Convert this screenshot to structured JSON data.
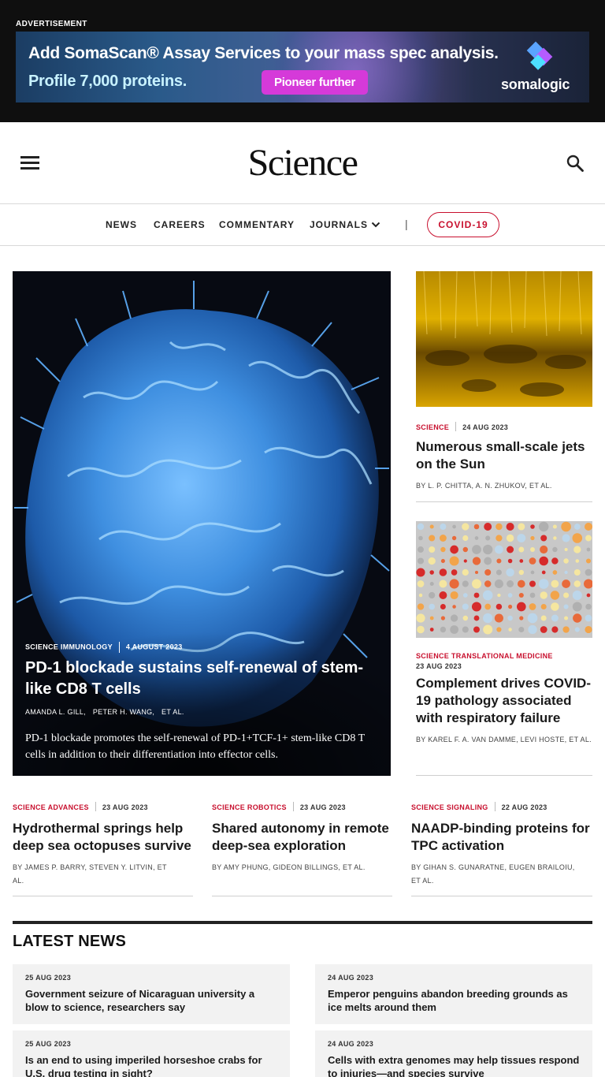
{
  "ad": {
    "label": "ADVERTISEMENT",
    "headline": "Add SomaScan® Assay Services to your mass spec analysis.",
    "subline": "Profile 7,000 proteins.",
    "cta": "Pioneer further",
    "brand": "somalogic"
  },
  "header": {
    "logo": "Science",
    "icons": {
      "menu": "hamburger-menu-icon",
      "search": "search-icon"
    }
  },
  "nav": {
    "items": [
      "NEWS",
      "CAREERS",
      "COMMENTARY",
      "JOURNALS"
    ],
    "separator": "|",
    "covid_label": "COVID-19"
  },
  "hero": {
    "kicker": "SCIENCE IMMUNOLOGY",
    "date": "4 AUGUST 2023",
    "title": "PD-1 blockade sustains self-renewal of stem-like CD8 T cells",
    "authors": [
      "AMANDA L. GILL,",
      "PETER H. WANG,",
      "ET AL."
    ],
    "description": "PD-1 blockade promotes the self-renewal of PD-1+TCF-1+ stem-like CD8 T cells in addition to their differentiation into effector cells."
  },
  "side_cards": [
    {
      "kicker": "SCIENCE",
      "date": "24 AUG 2023",
      "title": "Numerous small-scale jets on the Sun",
      "authors": "BY L. P. CHITTA, A. N. ZHUKOV, ET AL."
    },
    {
      "kicker": "SCIENCE TRANSLATIONAL MEDICINE",
      "date": "23 AUG 2023",
      "title": "Complement drives COVID-19 pathology associated with respiratory failure",
      "authors": "BY KAREL F. A. VAN DAMME, LEVI HOSTE, ET AL."
    }
  ],
  "row_cards": [
    {
      "kicker": "SCIENCE ADVANCES",
      "date": "23 AUG 2023",
      "title": "Hydrothermal springs help deep sea octopuses survive",
      "authors": "BY JAMES P. BARRY, STEVEN Y. LITVIN, ET AL."
    },
    {
      "kicker": "SCIENCE ROBOTICS",
      "date": "23 AUG 2023",
      "title": "Shared autonomy in remote deep-sea exploration",
      "authors": "BY AMY PHUNG, GIDEON BILLINGS, ET AL."
    },
    {
      "kicker": "SCIENCE SIGNALING",
      "date": "22 AUG 2023",
      "title": "NAADP-binding proteins for TPC activation",
      "authors": "BY GIHAN S. GUNARATNE, EUGEN BRAILOIU, ET AL."
    }
  ],
  "latest_news": {
    "heading": "LATEST NEWS",
    "items": [
      {
        "date": "25 AUG 2023",
        "title": "Government seizure of Nicaraguan university a blow to science, researchers say"
      },
      {
        "date": "24 AUG 2023",
        "title": "Emperor penguins abandon breeding grounds as ice melts around them"
      },
      {
        "date": "25 AUG 2023",
        "title": "Is an end to using imperiled horseshoe crabs for U.S. drug testing in sight?"
      },
      {
        "date": "24 AUG 2023",
        "title": "Cells with extra genomes may help tissues respond to injuries—and species survive"
      }
    ]
  },
  "colors": {
    "accent_red": "#c8102e",
    "ad_cta": "#d53ad9",
    "hero_cell": "#3f8fe0"
  }
}
